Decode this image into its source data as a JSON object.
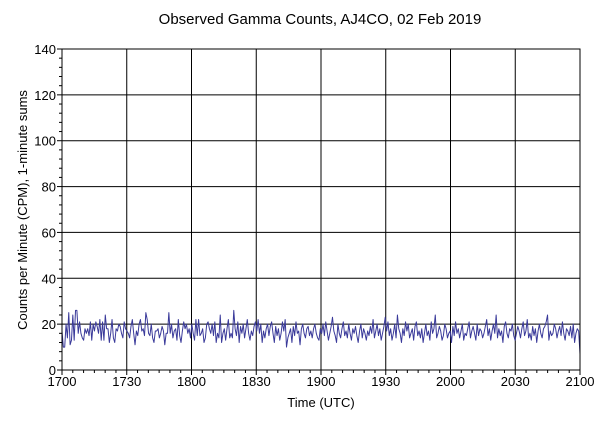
{
  "chart_data": {
    "type": "line",
    "title": "Observed Gamma Counts, AJ4CO, 02 Feb 2019",
    "xlabel": "Time (UTC)",
    "ylabel": "Counts per Minute (CPM), 1-minute sums",
    "x_tick_labels": [
      "1700",
      "1730",
      "1800",
      "1830",
      "1900",
      "1930",
      "2000",
      "2030",
      "2100"
    ],
    "y_tick_labels": [
      "0",
      "20",
      "40",
      "60",
      "80",
      "100",
      "120",
      "140"
    ],
    "xlim_minutes": [
      0,
      240
    ],
    "ylim": [
      0,
      140
    ],
    "grid": true,
    "colors": {
      "line": "#3a3a9a",
      "grid": "#000000"
    },
    "series": [
      {
        "values": [
          17,
          10,
          10,
          20,
          14,
          25,
          11,
          13,
          24,
          13,
          26,
          26,
          16,
          21,
          16,
          14,
          13,
          18,
          16,
          18,
          15,
          21,
          13,
          20,
          17,
          21,
          19,
          16,
          22,
          13,
          21,
          13,
          24,
          18,
          18,
          12,
          16,
          22,
          14,
          12,
          18,
          17,
          20,
          19,
          16,
          14,
          21,
          18,
          17,
          16,
          14,
          19,
          22,
          16,
          11,
          17,
          15,
          20,
          22,
          17,
          18,
          15,
          25,
          22,
          16,
          15,
          20,
          14,
          12,
          17,
          17,
          18,
          14,
          16,
          19,
          17,
          11,
          16,
          16,
          25,
          16,
          20,
          14,
          17,
          18,
          13,
          22,
          15,
          12,
          17,
          21,
          18,
          20,
          16,
          18,
          14,
          20,
          16,
          13,
          22,
          15,
          22,
          15,
          16,
          18,
          12,
          14,
          20,
          21,
          18,
          16,
          20,
          15,
          21,
          12,
          16,
          14,
          24,
          12,
          16,
          18,
          13,
          18,
          22,
          14,
          16,
          14,
          26,
          18,
          15,
          21,
          12,
          19,
          16,
          20,
          14,
          18,
          22,
          16,
          13,
          17,
          15,
          19,
          21,
          17,
          22,
          16,
          20,
          12,
          17,
          14,
          18,
          20,
          15,
          19,
          21,
          16,
          12,
          19,
          15,
          18,
          13,
          16,
          21,
          17,
          22,
          10,
          14,
          16,
          18,
          12,
          19,
          15,
          21,
          16,
          17,
          11,
          18,
          20,
          16,
          14,
          18,
          19,
          15,
          17,
          14,
          18,
          20,
          16,
          14,
          13,
          18,
          16,
          20,
          15,
          21,
          17,
          13,
          16,
          19,
          23,
          17,
          15,
          12,
          20,
          16,
          14,
          18,
          21,
          15,
          17,
          14,
          20,
          16,
          13,
          18,
          16,
          19,
          15,
          12,
          17,
          20,
          14,
          18,
          16,
          13,
          17,
          15,
          19,
          16,
          22,
          14,
          17,
          20,
          15,
          18,
          13,
          16,
          19,
          23,
          17,
          21,
          15,
          18,
          13,
          16,
          20,
          14,
          24,
          18,
          16,
          12,
          18,
          15,
          21,
          17,
          20,
          14,
          16,
          18,
          13,
          19,
          21,
          15,
          17,
          14,
          18,
          12,
          16,
          20,
          15,
          17,
          13,
          21,
          16,
          18,
          24,
          14,
          16,
          19,
          17,
          13,
          15,
          20,
          18,
          14,
          16,
          17,
          12,
          19,
          15,
          21,
          16,
          18,
          14,
          17,
          20,
          13,
          16,
          15,
          18,
          21,
          14,
          17,
          19,
          16,
          13,
          20,
          15,
          18,
          17,
          14,
          16,
          19,
          22,
          15,
          18,
          13,
          17,
          20,
          16,
          24,
          14,
          18,
          15,
          17,
          12,
          19,
          21,
          16,
          14,
          18,
          17,
          20,
          15,
          13,
          16,
          19,
          17,
          14,
          18,
          21,
          15,
          17,
          22,
          14,
          16,
          13,
          19,
          15,
          18,
          12,
          17,
          20,
          16,
          14,
          18,
          19,
          21,
          24,
          13,
          17,
          15,
          16,
          20,
          18,
          14,
          17,
          19,
          15,
          21,
          16,
          13,
          18,
          17,
          15,
          19,
          14,
          20,
          12,
          16,
          18,
          17,
          7
        ]
      }
    ]
  }
}
